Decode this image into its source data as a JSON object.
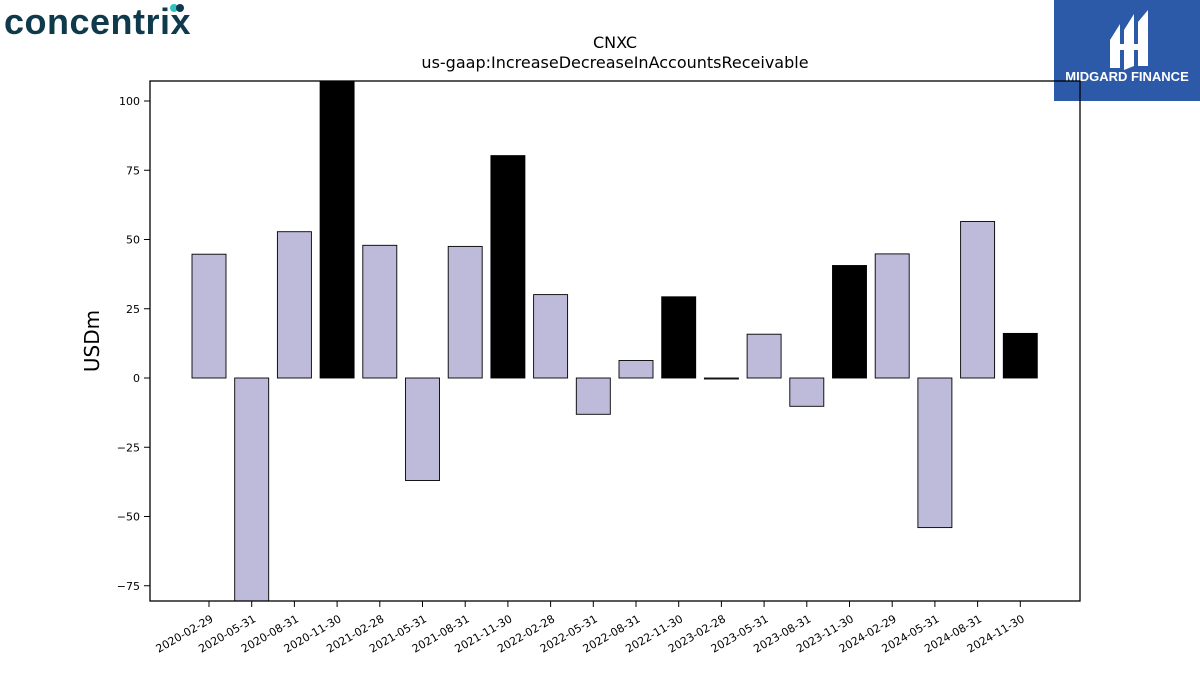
{
  "logos": {
    "left_text": "concentrix",
    "right_text": "MIDGARD FINANCE"
  },
  "colors": {
    "bar_default": "#bebada",
    "bar_highlight": "#000000",
    "logo_left_text": "#0f3a4c",
    "logo_left_accent": "#2fc4c0",
    "logo_right_bg": "#2d5aa8",
    "logo_right_text": "#ffffff"
  },
  "chart_data": {
    "type": "bar",
    "title": "CNXC",
    "subtitle": "us-gaap:IncreaseDecreaseInAccountsReceivable",
    "xlabel": "",
    "ylabel": "USDm",
    "ylim": [
      -80,
      107
    ],
    "yticks": [
      -75,
      -50,
      -25,
      0,
      25,
      50,
      75,
      100
    ],
    "grid": false,
    "categories": [
      "2020-02-29",
      "2020-05-31",
      "2020-08-31",
      "2020-11-30",
      "2021-02-28",
      "2021-05-31",
      "2021-08-31",
      "2021-11-30",
      "2022-02-28",
      "2022-05-31",
      "2022-08-31",
      "2022-11-30",
      "2023-02-28",
      "2023-05-31",
      "2023-08-31",
      "2023-11-30",
      "2024-02-29",
      "2024-05-31",
      "2024-08-31",
      "2024-11-30"
    ],
    "values": [
      44.7,
      -80.6,
      52.8,
      107.5,
      47.9,
      -37.0,
      47.5,
      80.3,
      30.1,
      -13.1,
      6.3,
      29.3,
      -0.3,
      15.8,
      -10.2,
      40.6,
      44.8,
      -54.0,
      56.5,
      16.1
    ],
    "highlight": [
      false,
      false,
      false,
      true,
      false,
      false,
      false,
      true,
      false,
      false,
      false,
      true,
      false,
      false,
      false,
      true,
      false,
      false,
      false,
      true
    ]
  }
}
